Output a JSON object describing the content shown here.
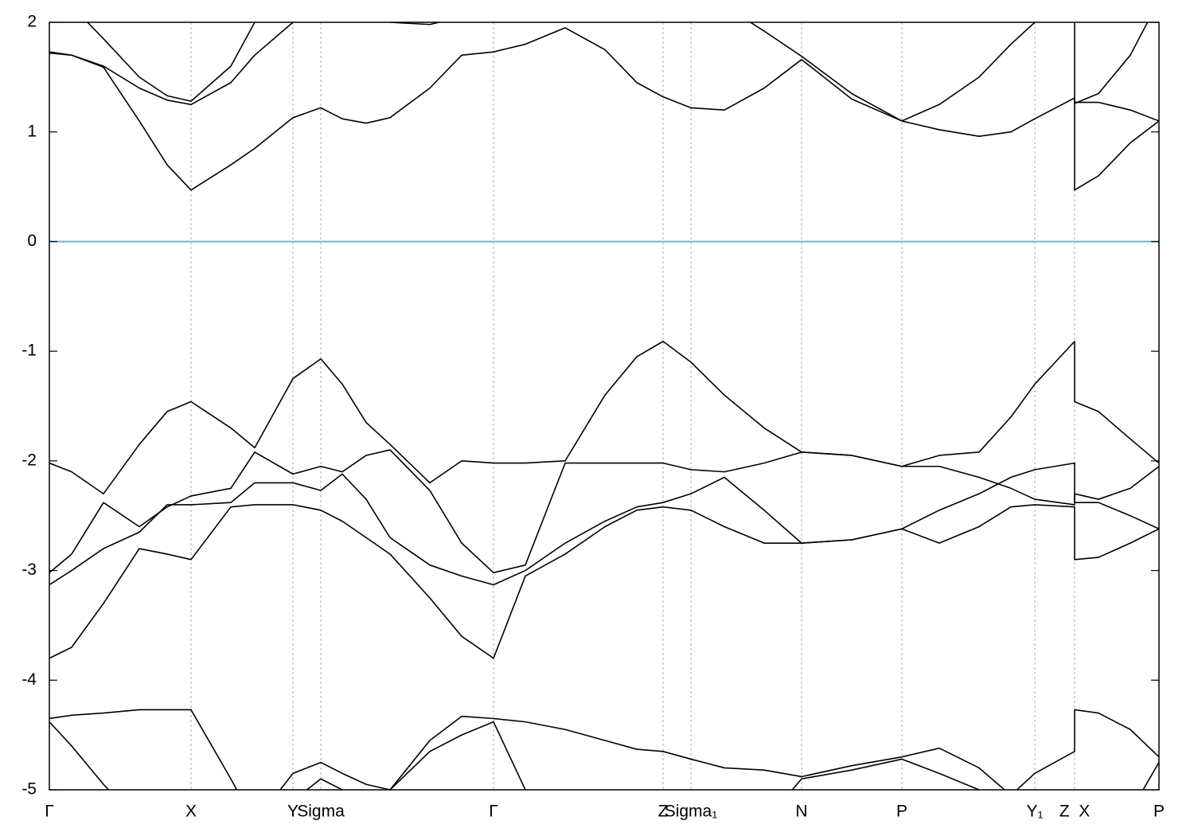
{
  "chart_data": {
    "type": "line",
    "x": [
      0,
      28,
      68,
      113,
      148,
      178,
      228,
      258,
      306,
      341,
      368,
      398,
      428,
      478,
      518,
      558,
      598,
      648,
      698,
      738,
      771,
      806,
      848,
      898,
      945,
      1008,
      1071,
      1118,
      1168,
      1208,
      1238,
      1288,
      1288,
      1318,
      1358,
      1394
    ],
    "xlim": [
      0,
      1394
    ],
    "xticks": [
      {
        "value": 0,
        "label": "Γ"
      },
      {
        "value": 178,
        "label": "X"
      },
      {
        "value": 306,
        "label": "Y"
      },
      {
        "value": 341,
        "label": "Sigma"
      },
      {
        "value": 558,
        "label": "Γ"
      },
      {
        "value": 771,
        "label": "Z"
      },
      {
        "value": 806,
        "label": "Sigma₁"
      },
      {
        "value": 945,
        "label": "N"
      },
      {
        "value": 1071,
        "label": "P"
      },
      {
        "value": 1238,
        "label": "Y₁"
      },
      {
        "value": 1288,
        "label": "Z  X"
      },
      {
        "value": 1394,
        "label": "P"
      }
    ],
    "ylim": [
      -5,
      2
    ],
    "yticks": [
      -5,
      -4,
      -3,
      -2,
      -1,
      0,
      1,
      2
    ],
    "grid": true,
    "fermi_level": 0,
    "fermi_color": "#5ab4d0",
    "series": [
      {
        "color": "#000000",
        "values": [
          1.72,
          1.7,
          1.59,
          1.1,
          0.7,
          0.47,
          0.7,
          0.85,
          1.13,
          1.22,
          1.12,
          1.08,
          1.13,
          1.4,
          1.7,
          1.73,
          1.8,
          1.95,
          1.75,
          1.45,
          1.32,
          1.22,
          1.2,
          1.4,
          1.66,
          1.3,
          1.1,
          1.02,
          0.96,
          1.0,
          1.12,
          1.31,
          0.47,
          0.6,
          0.9,
          1.1
        ]
      },
      {
        "color": "#000000",
        "values": [
          1.73,
          1.7,
          1.6,
          1.4,
          1.29,
          1.25,
          1.45,
          1.7,
          2.0,
          2.15,
          null,
          null,
          null,
          null,
          null,
          null,
          null,
          null,
          null,
          null,
          null,
          null,
          null,
          null,
          null,
          null,
          null,
          null,
          null,
          null,
          null,
          2.3,
          1.27,
          1.27,
          1.2,
          1.1
        ]
      },
      {
        "color": "#000000",
        "values": [
          null,
          2.15,
          1.85,
          1.5,
          1.33,
          1.28,
          1.6,
          2.0,
          2.3,
          null,
          null,
          null,
          null,
          null,
          null,
          null,
          null,
          null,
          null,
          null,
          null,
          null,
          null,
          null,
          null,
          null,
          null,
          null,
          null,
          null,
          null,
          null,
          1.26,
          1.35,
          1.7,
          2.2
        ]
      },
      {
        "color": "#000000",
        "values": [
          null,
          null,
          null,
          null,
          null,
          null,
          null,
          null,
          null,
          null,
          null,
          2.1,
          2.0,
          1.98,
          2.05,
          2.2,
          null,
          null,
          null,
          null,
          null,
          null,
          null,
          null,
          null,
          null,
          null,
          null,
          null,
          null,
          null,
          null,
          null,
          null,
          null,
          null
        ]
      },
      {
        "color": "#000000",
        "values": [
          null,
          null,
          null,
          null,
          null,
          null,
          null,
          null,
          null,
          null,
          null,
          null,
          null,
          null,
          null,
          null,
          null,
          null,
          null,
          null,
          null,
          null,
          2.15,
          1.92,
          1.69,
          1.35,
          1.1,
          1.25,
          1.5,
          1.8,
          2.0,
          2.3,
          null,
          null,
          null,
          null
        ]
      },
      {
        "color": "#000000",
        "values": [
          -2.02,
          -2.1,
          -2.3,
          -1.85,
          -1.55,
          -1.46,
          -1.7,
          -1.88,
          -1.25,
          -1.07,
          -1.3,
          -1.65,
          -1.85,
          -2.2,
          -2.0,
          -2.02,
          -2.02,
          -2.0,
          -1.4,
          -1.05,
          -0.91,
          -1.1,
          -1.4,
          -1.7,
          -1.92,
          -1.95,
          -2.05,
          -1.95,
          -1.92,
          -1.6,
          -1.3,
          -0.91,
          -1.46,
          -1.55,
          -1.8,
          -2.02
        ]
      },
      {
        "color": "#000000",
        "values": [
          -3.02,
          -2.85,
          -2.38,
          -2.6,
          -2.42,
          -2.32,
          -2.25,
          -1.92,
          -2.12,
          -2.05,
          -2.1,
          -1.95,
          -1.9,
          -2.27,
          -2.75,
          -3.02,
          -2.95,
          -2.02,
          -2.02,
          -2.02,
          -2.02,
          -2.08,
          -2.1,
          -2.02,
          -1.92,
          -1.95,
          -2.05,
          -2.05,
          -2.15,
          -2.25,
          -2.35,
          -2.4,
          -2.3,
          -2.35,
          -2.25,
          -2.05
        ]
      },
      {
        "color": "#000000",
        "values": [
          -3.13,
          -3.0,
          -2.8,
          -2.65,
          -2.4,
          -2.4,
          -2.38,
          -2.2,
          -2.2,
          -2.27,
          -2.12,
          -2.35,
          -2.7,
          -2.95,
          -3.05,
          -3.13,
          -3.0,
          -2.75,
          -2.55,
          -2.42,
          -2.38,
          -2.3,
          -2.15,
          -2.45,
          -2.75,
          -2.72,
          -2.62,
          -2.45,
          -2.3,
          -2.15,
          -2.08,
          -2.02,
          -2.38,
          -2.38,
          -2.5,
          -2.62
        ]
      },
      {
        "color": "#000000",
        "values": [
          -3.8,
          -3.7,
          -3.3,
          -2.8,
          -2.85,
          -2.9,
          -2.42,
          -2.4,
          -2.4,
          -2.45,
          -2.55,
          -2.7,
          -2.85,
          -3.25,
          -3.6,
          -3.8,
          -3.05,
          -2.85,
          -2.6,
          -2.45,
          -2.42,
          -2.45,
          -2.6,
          -2.75,
          -2.75,
          -2.72,
          -2.62,
          -2.75,
          -2.6,
          -2.42,
          -2.4,
          -2.42,
          -2.9,
          -2.88,
          -2.75,
          -2.62
        ]
      },
      {
        "color": "#000000",
        "values": [
          -4.35,
          -4.32,
          -4.3,
          -4.27,
          -4.27,
          -4.27,
          -4.9,
          -5.3,
          -4.85,
          -4.75,
          -4.85,
          -4.95,
          -5.0,
          -4.55,
          -4.33,
          -4.35,
          -4.38,
          -4.45,
          -4.55,
          -4.63,
          -4.65,
          -4.72,
          -4.8,
          -4.82,
          -4.88,
          -4.78,
          -4.7,
          -4.62,
          -4.8,
          -5.05,
          -4.85,
          -4.65,
          -4.27,
          -4.3,
          -4.45,
          -4.7
        ]
      },
      {
        "color": "#000000",
        "values": [
          -4.38,
          -4.6,
          -4.95,
          -5.3,
          null,
          null,
          null,
          null,
          -5.1,
          -4.9,
          -5.0,
          -5.2,
          -5.0,
          -4.65,
          -4.5,
          -4.38,
          -5.0,
          -5.5,
          null,
          null,
          null,
          null,
          null,
          -5.3,
          -4.9,
          -4.82,
          -4.72,
          -4.85,
          -5.0,
          -5.2,
          -5.3,
          null,
          null,
          null,
          -5.2,
          -4.75
        ]
      }
    ]
  }
}
